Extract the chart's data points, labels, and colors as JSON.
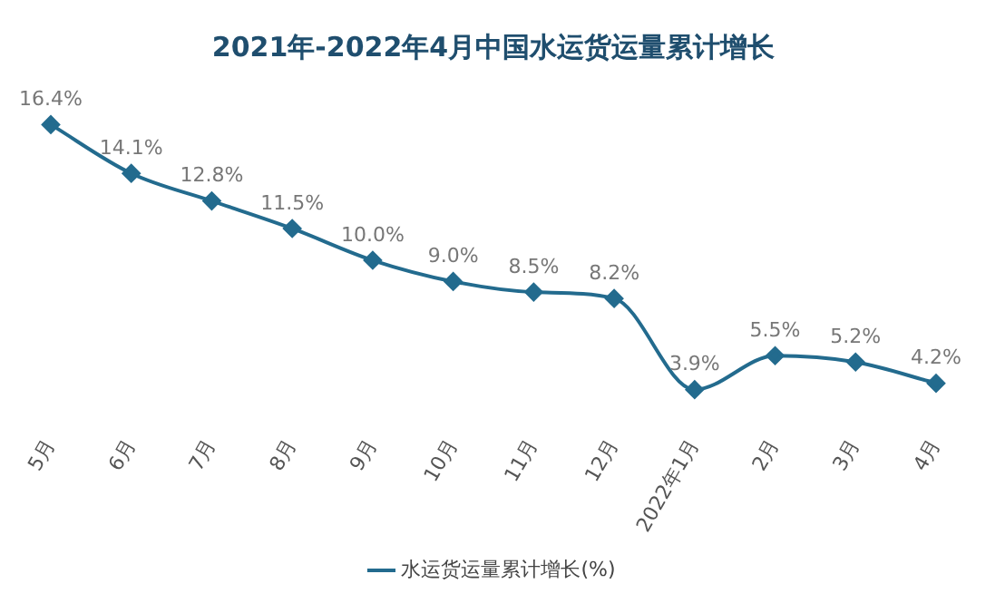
{
  "chart_data": {
    "type": "line",
    "title": "2021年-2022年4月中国水运货运量累计增长",
    "categories": [
      "5月",
      "6月",
      "7月",
      "8月",
      "9月",
      "10月",
      "11月",
      "12月",
      "2022年1月",
      "2月",
      "3月",
      "4月"
    ],
    "series": [
      {
        "name": "水运货运量累计增长(%)",
        "color": "#236b8e",
        "values": [
          16.4,
          14.1,
          12.8,
          11.5,
          10.0,
          9.0,
          8.5,
          8.2,
          3.9,
          5.5,
          5.2,
          4.2
        ],
        "value_labels": [
          "16.4%",
          "14.1%",
          "12.8%",
          "11.5%",
          "10.0%",
          "9.0%",
          "8.5%",
          "8.2%",
          "3.9%",
          "5.5%",
          "5.2%",
          "4.2%"
        ]
      }
    ],
    "legend": "bottom",
    "marker": "diamond",
    "grid": false
  }
}
